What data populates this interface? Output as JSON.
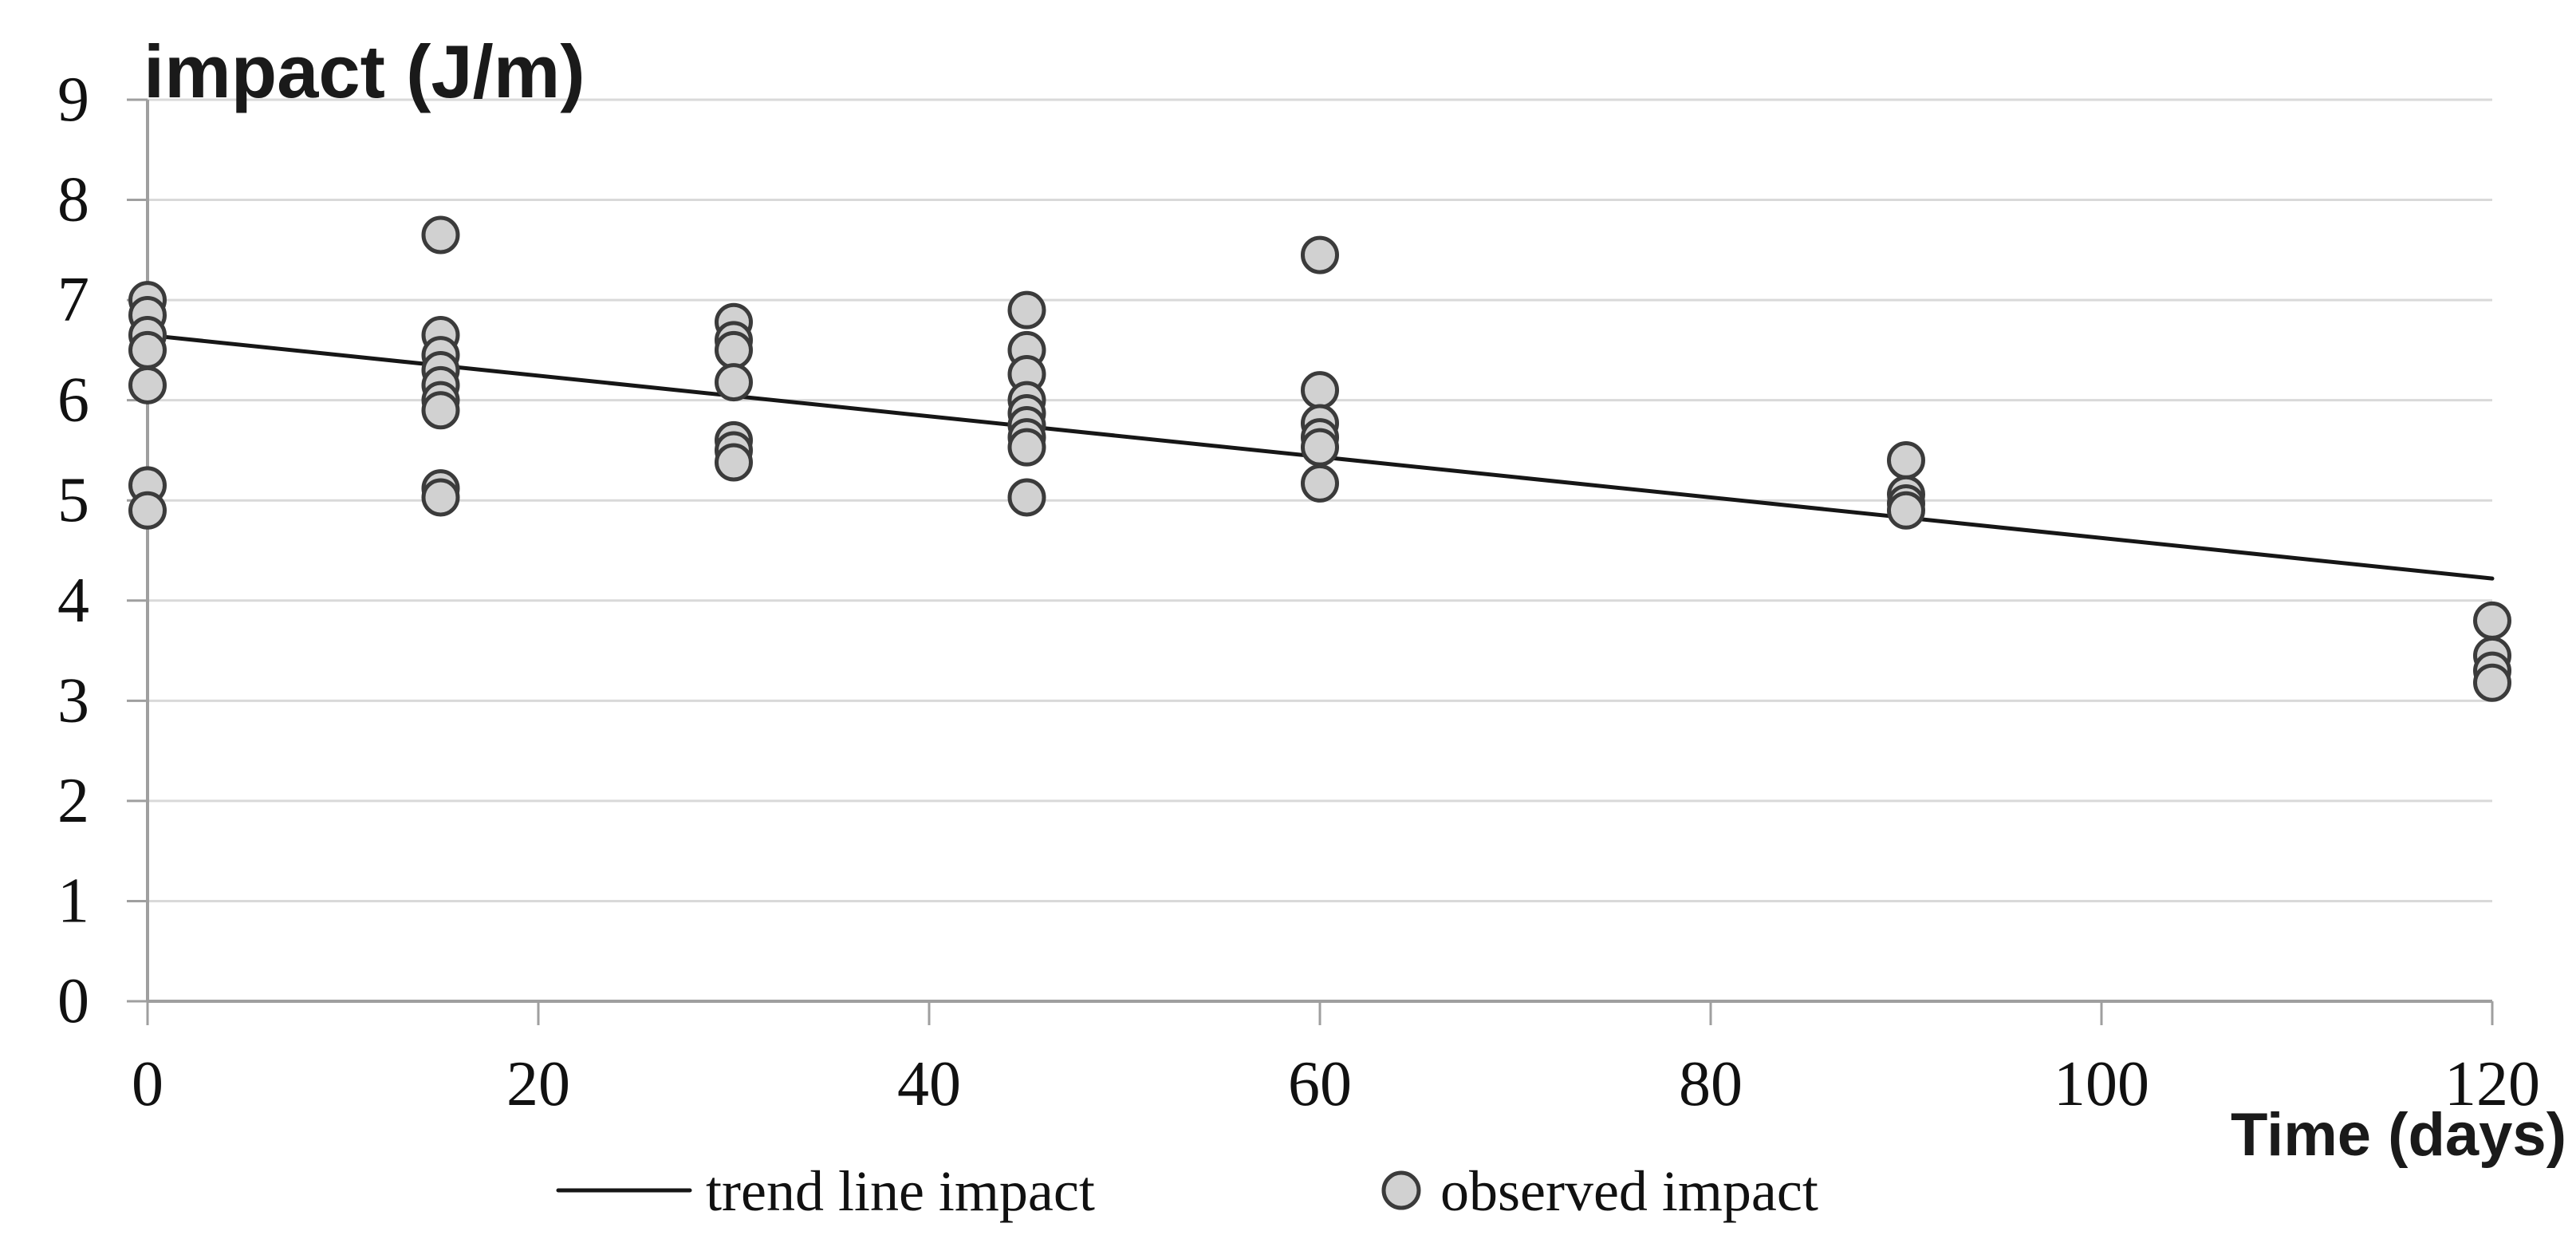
{
  "chart_data": {
    "type": "scatter",
    "title": "impact (J/m)",
    "xlabel": "Time (days)",
    "ylabel": "impact (J/m)",
    "xlim": [
      0,
      120
    ],
    "ylim": [
      0,
      9
    ],
    "xticks": [
      0,
      20,
      40,
      60,
      80,
      100,
      120
    ],
    "xtick_labels": [
      "0",
      "20",
      "40",
      "60",
      "80",
      "100",
      "120"
    ],
    "yticks": [
      0,
      1,
      2,
      3,
      4,
      5,
      6,
      7,
      8,
      9
    ],
    "ytick_labels": [
      "0",
      "1",
      "2",
      "3",
      "4",
      "5",
      "6",
      "7",
      "8",
      "9"
    ],
    "grid": "horizontal-only",
    "legend_position": "bottom-center",
    "series": [
      {
        "name": "observed impact",
        "type": "scatter",
        "marker": "circle",
        "marker_fill": "#d1d1d1",
        "marker_stroke": "#3b3b3b",
        "points": [
          [
            0,
            7.0
          ],
          [
            0,
            6.85
          ],
          [
            0,
            6.65
          ],
          [
            0,
            6.5
          ],
          [
            0,
            6.15
          ],
          [
            0,
            5.15
          ],
          [
            0,
            4.9
          ],
          [
            15,
            7.65
          ],
          [
            15,
            6.65
          ],
          [
            15,
            6.45
          ],
          [
            15,
            6.3
          ],
          [
            15,
            6.15
          ],
          [
            15,
            6.0
          ],
          [
            15,
            5.9
          ],
          [
            15,
            5.12
          ],
          [
            15,
            5.03
          ],
          [
            30,
            6.78
          ],
          [
            30,
            6.6
          ],
          [
            30,
            6.5
          ],
          [
            30,
            6.18
          ],
          [
            30,
            5.6
          ],
          [
            30,
            5.5
          ],
          [
            30,
            5.38
          ],
          [
            45,
            6.9
          ],
          [
            45,
            6.5
          ],
          [
            45,
            6.26
          ],
          [
            45,
            6.0
          ],
          [
            45,
            5.87
          ],
          [
            45,
            5.75
          ],
          [
            45,
            5.63
          ],
          [
            45,
            5.53
          ],
          [
            45,
            5.03
          ],
          [
            60,
            7.45
          ],
          [
            60,
            6.1
          ],
          [
            60,
            5.77
          ],
          [
            60,
            5.63
          ],
          [
            60,
            5.53
          ],
          [
            60,
            5.17
          ],
          [
            90,
            5.4
          ],
          [
            90,
            5.06
          ],
          [
            90,
            4.97
          ],
          [
            90,
            4.9
          ],
          [
            120,
            3.8
          ],
          [
            120,
            3.45
          ],
          [
            120,
            3.3
          ],
          [
            120,
            3.18
          ]
        ]
      },
      {
        "name": "trend line impact",
        "type": "line",
        "color": "#161616",
        "points": [
          [
            0,
            6.65
          ],
          [
            120,
            4.22
          ]
        ]
      }
    ],
    "legend": [
      {
        "label": "trend line impact",
        "symbol": "line"
      },
      {
        "label": "observed impact",
        "symbol": "circle-marker"
      }
    ],
    "colors": {
      "gridline": "#d9d9d9",
      "axis": "#9f9f9f",
      "marker_fill": "#d1d1d1",
      "marker_stroke": "#3b3b3b",
      "trend_line": "#161616",
      "text": "#111111"
    }
  }
}
